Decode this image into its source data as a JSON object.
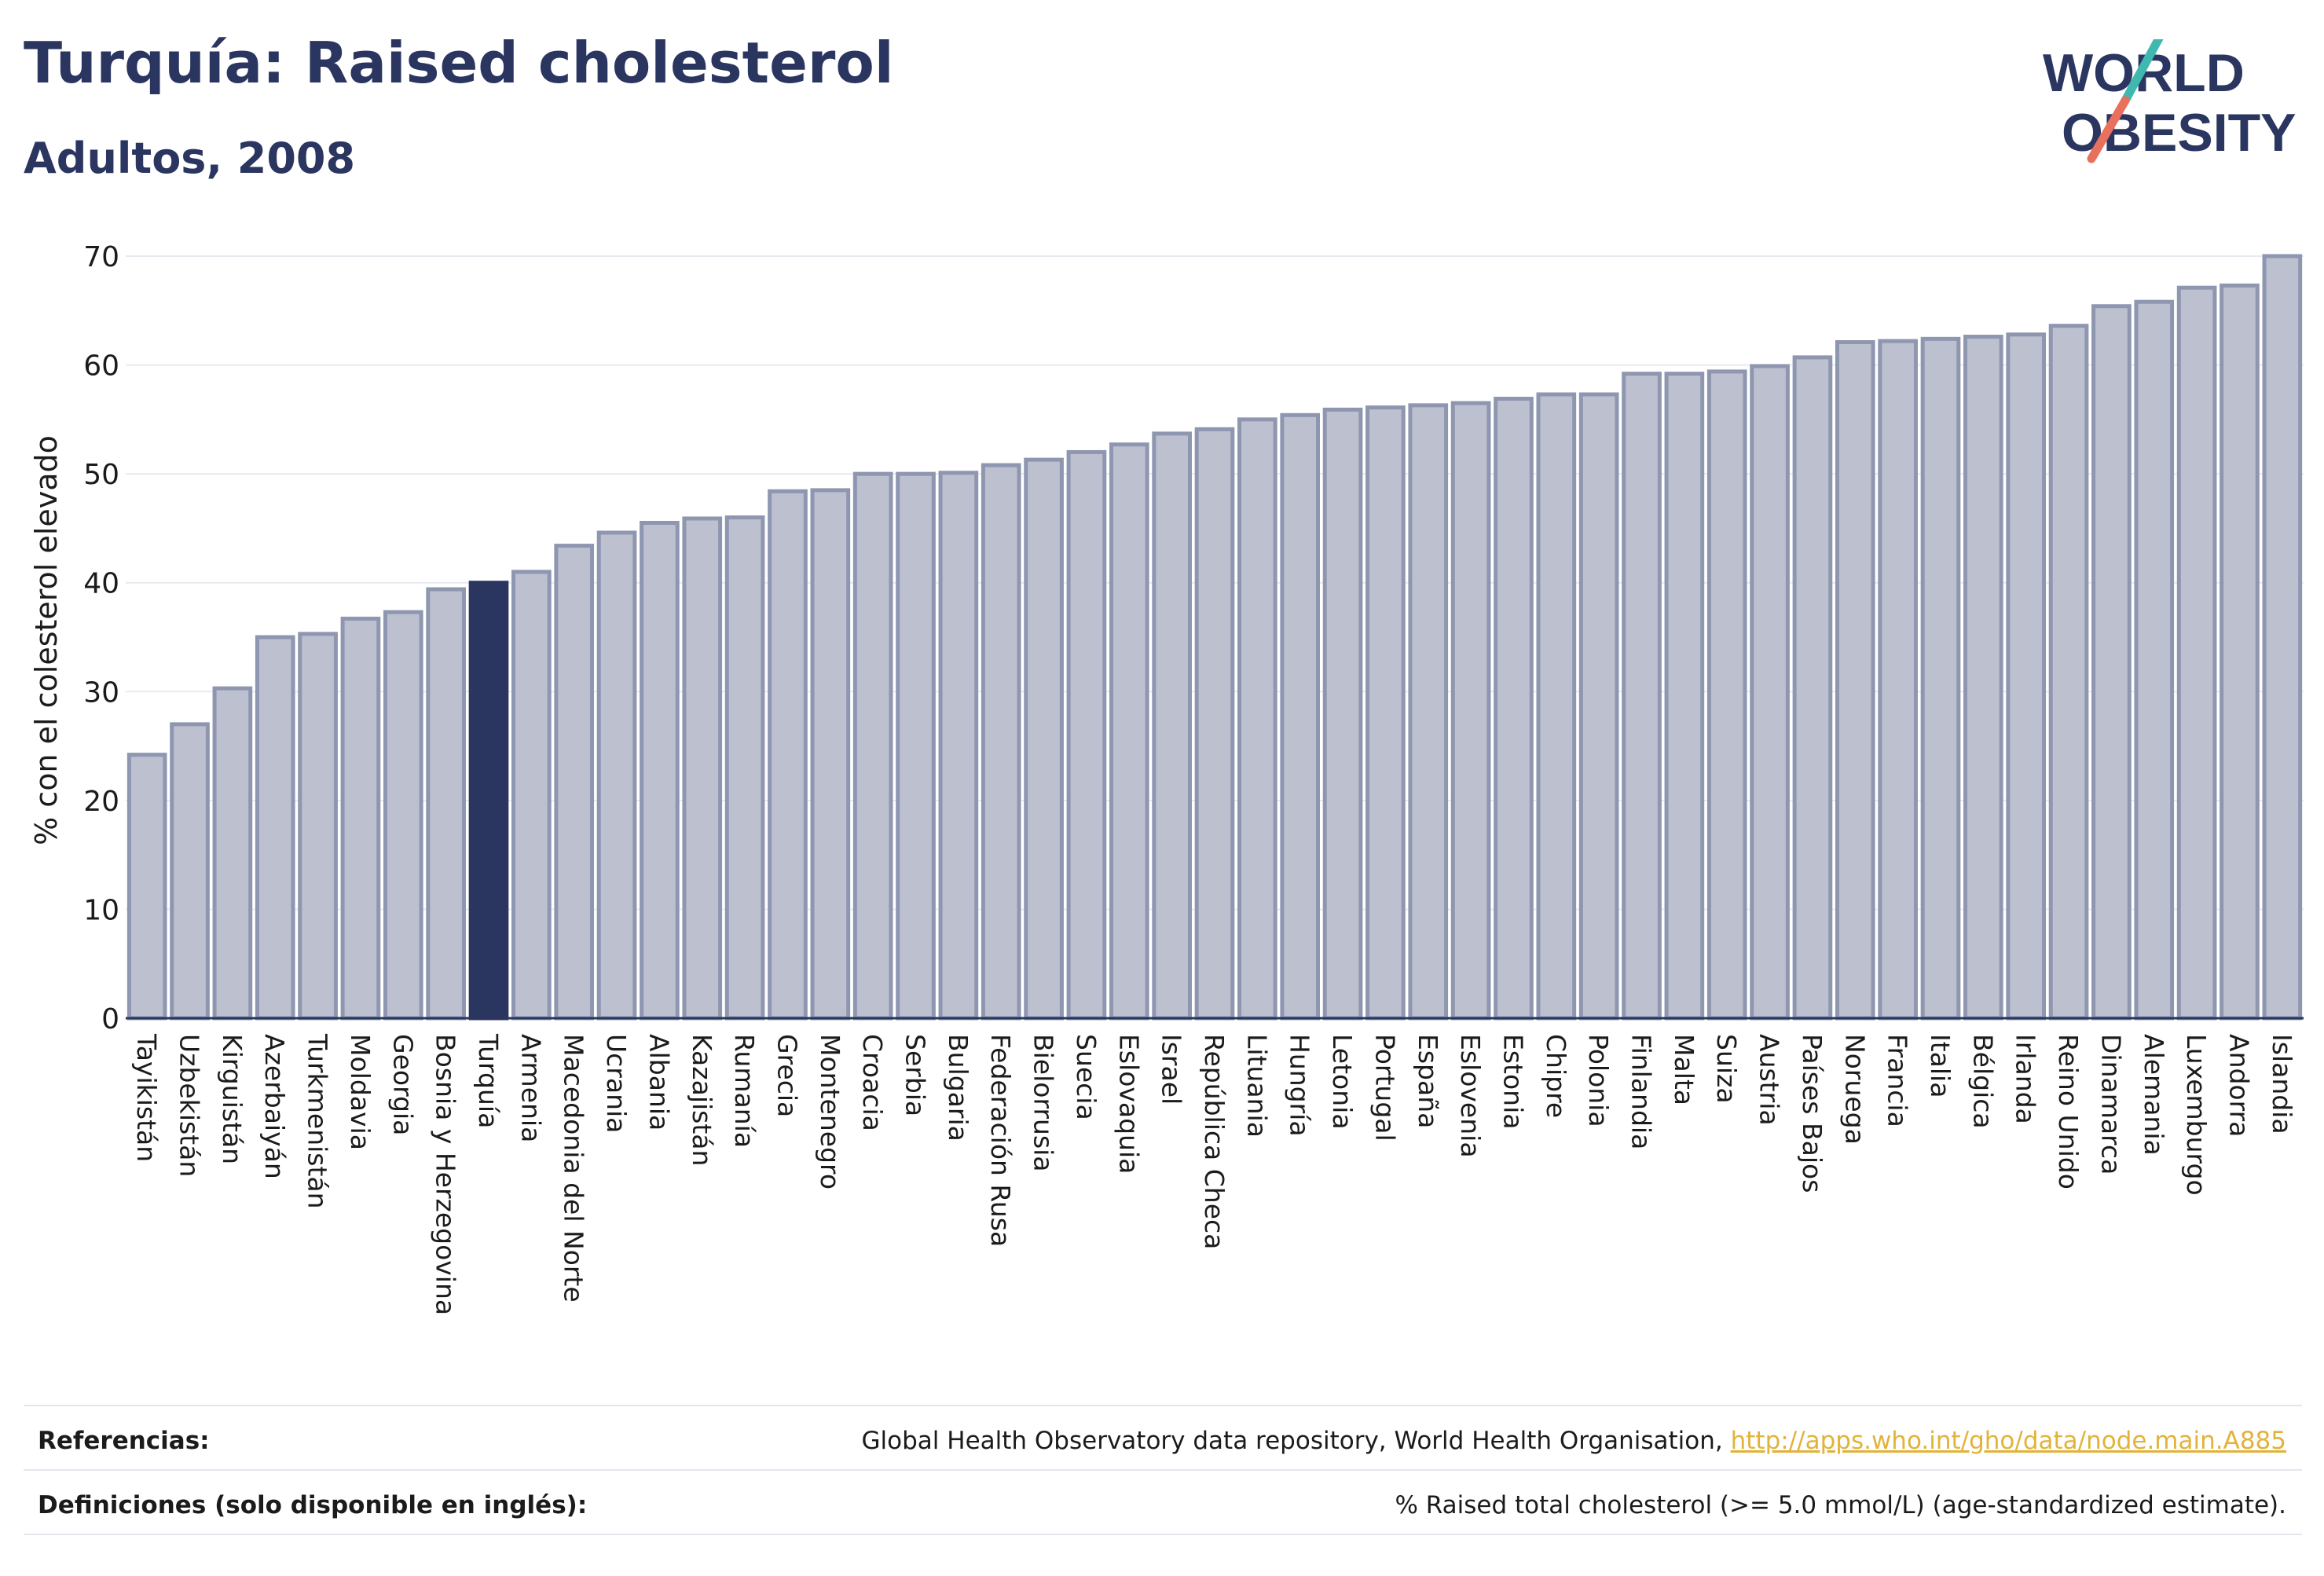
{
  "header": {
    "title": "Turquía: Raised cholesterol",
    "subtitle": "Adultos, 2008"
  },
  "logo": {
    "line1": "WORLD",
    "line2": "OBESITY"
  },
  "colors": {
    "highlight": "#2a3560",
    "bar": "#bcc0cf",
    "bar_edge": "#8e96b0",
    "axis": "#2a3560",
    "grid": "#e8eaf0"
  },
  "chart_data": {
    "type": "bar",
    "ylabel": "% con el colesterol elevado",
    "ylim": [
      0,
      70
    ],
    "yticks": [
      0,
      10,
      20,
      30,
      40,
      50,
      60,
      70
    ],
    "highlight": "Turquía",
    "categories": [
      "Tayikistán",
      "Uzbekistán",
      "Kirguistán",
      "Azerbaiyán",
      "Turkmenistán",
      "Moldavia",
      "Georgia",
      "Bosnia y Herzegovina",
      "Turquía",
      "Armenia",
      "Macedonia del Norte",
      "Ucrania",
      "Albania",
      "Kazajistán",
      "Rumanía",
      "Grecia",
      "Montenegro",
      "Croacia",
      "Serbia",
      "Bulgaria",
      "Federación Rusa",
      "Bielorrusia",
      "Suecia",
      "Eslovaquia",
      "Israel",
      "República Checa",
      "Lituania",
      "Hungría",
      "Letonia",
      "Portugal",
      "España",
      "Eslovenia",
      "Estonia",
      "Chipre",
      "Polonia",
      "Finlandia",
      "Malta",
      "Suiza",
      "Austria",
      "Países Bajos",
      "Noruega",
      "Francia",
      "Italia",
      "Bélgica",
      "Irlanda",
      "Reino Unido",
      "Dinamarca",
      "Alemania",
      "Luxemburgo",
      "Andorra",
      "Islandia"
    ],
    "values": [
      24.2,
      27.0,
      30.3,
      35.0,
      35.3,
      36.7,
      37.3,
      39.4,
      40.0,
      41.0,
      43.4,
      44.6,
      45.5,
      45.9,
      46.0,
      48.4,
      48.5,
      50.0,
      50.0,
      50.1,
      50.8,
      51.3,
      52.0,
      52.7,
      53.7,
      54.1,
      55.0,
      55.4,
      55.9,
      56.1,
      56.3,
      56.5,
      56.9,
      57.3,
      57.3,
      59.2,
      59.2,
      59.4,
      59.9,
      60.7,
      62.1,
      62.2,
      62.4,
      62.6,
      62.8,
      63.6,
      65.4,
      65.8,
      67.1,
      67.3,
      70.0
    ]
  },
  "footer": {
    "references_label": "Referencias:",
    "references_text": "Global Health Observatory data repository, World Health Organisation, ",
    "references_link": "http://apps.who.int/gho/data/node.main.A885",
    "definitions_label": "Definiciones (solo disponible en inglés):",
    "definitions_text": "% Raised total cholesterol (>= 5.0 mmol/L) (age-standardized estimate)."
  }
}
